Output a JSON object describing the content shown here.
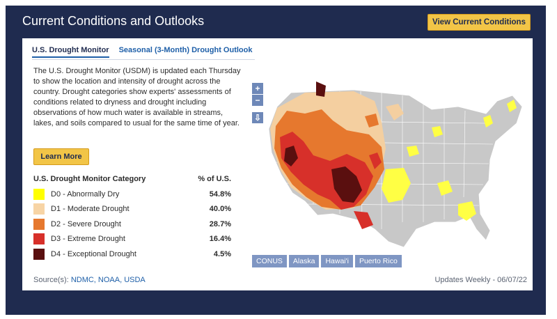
{
  "header": {
    "title": "Current Conditions and Outlooks",
    "view_button": "View Current Conditions"
  },
  "tabs": [
    {
      "label": "U.S. Drought Monitor",
      "active": true
    },
    {
      "label": "Seasonal (3-Month) Drought Outlook",
      "active": false
    }
  ],
  "description": "The U.S. Drought Monitor (USDM) is updated each Thursday to show the location and intensity of drought across the country. Drought categories show experts' assessments of conditions related to dryness and drought including observations of how much water is available in streams, lakes, and soils compared to usual for the same time of year.",
  "learn_more": "Learn More",
  "legend": {
    "header_category": "U.S. Drought Monitor Category",
    "header_pct": "% of U.S.",
    "rows": [
      {
        "label": "D0 - Abnormally Dry",
        "pct": "54.8%",
        "color": "#ffff00"
      },
      {
        "label": "D1 - Moderate Drought",
        "pct": "40.0%",
        "color": "#fcd37f"
      },
      {
        "label": "D2 - Severe Drought",
        "pct": "28.7%",
        "color": "#ffaa00"
      },
      {
        "label": "D3 - Extreme Drought",
        "pct": "16.4%",
        "color": "#e60000"
      },
      {
        "label": "D4 - Exceptional Drought",
        "pct": "4.5%",
        "color": "#730000"
      }
    ]
  },
  "map_controls": {
    "zoom_in": "+",
    "zoom_out": "−"
  },
  "regions": [
    "CONUS",
    "Alaska",
    "Hawai'i",
    "Puerto Rico"
  ],
  "footer": {
    "sources_prefix": "Source(s):",
    "sources": "NDMC, NOAA, USDA",
    "updates": "Updates Weekly",
    "date": "06/07/22"
  },
  "colors": {
    "navy": "#1f2b4f",
    "gold": "#f2c547",
    "link": "#1e5fa8"
  }
}
